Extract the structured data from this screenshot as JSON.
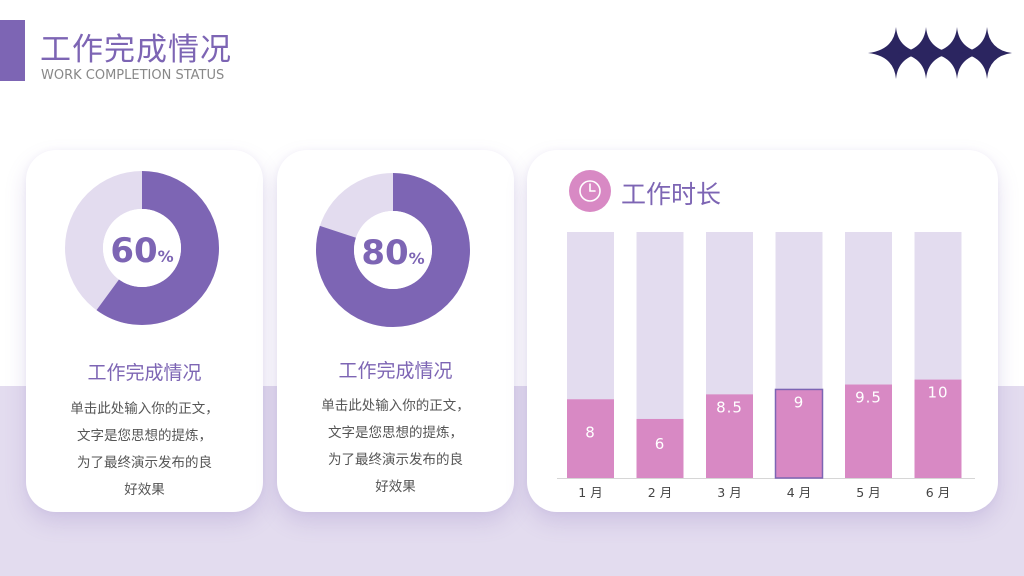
{
  "header": {
    "title": "工作完成情况",
    "subtitle": "WORK COMPLETION STATUS"
  },
  "colors": {
    "primary": "#7d65b4",
    "light": "#e3dcef",
    "accent": "#d889c4",
    "text": "#555555"
  },
  "cards": [
    {
      "percent": 60,
      "percent_text": "60",
      "percent_sign": "%",
      "heading": "工作完成情况",
      "body_lines": [
        "单击此处输入你的正文，",
        "文字是您思想的提炼，",
        "为了最终演示发布的良",
        "好效果"
      ]
    },
    {
      "percent": 80,
      "percent_text": "80",
      "percent_sign": "%",
      "heading": "工作完成情况",
      "body_lines": [
        "单击此处输入你的正文，",
        "文字是您思想的提炼，",
        "为了最终演示发布的良",
        "好效果"
      ]
    }
  ],
  "chart_panel": {
    "icon": "clock-icon",
    "title": "工作时长"
  },
  "chart_data": {
    "type": "bar",
    "title": "工作时长",
    "categories": [
      "1 月",
      "2 月",
      "3 月",
      "4 月",
      "5 月",
      "6 月"
    ],
    "values": [
      8,
      6,
      8.5,
      9,
      9.5,
      10
    ],
    "value_labels": [
      "8",
      "6",
      "8.5",
      "9",
      "9.5",
      "10"
    ],
    "ylim": [
      0,
      25
    ],
    "highlighted_category": "4 月",
    "bar_color": "#d889c4",
    "track_color": "#e3dcef",
    "grid": false,
    "legend": "none"
  }
}
